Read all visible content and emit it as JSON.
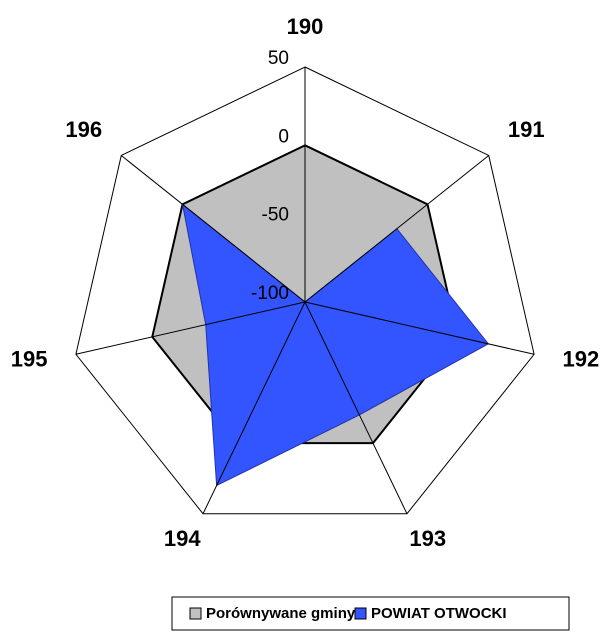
{
  "chart_data": {
    "type": "radar",
    "categories": [
      "190",
      "191",
      "192",
      "193",
      "194",
      "195",
      "196"
    ],
    "ylim": [
      -100,
      50
    ],
    "yticks": [
      -100,
      -50,
      0,
      50
    ],
    "series": [
      {
        "name": "Porównywane gminy",
        "color": "#c0c0c0",
        "values": [
          0,
          0,
          0,
          0,
          0,
          0,
          0
        ]
      },
      {
        "name": "POWIAT OTWOCKI",
        "color": "#3355ff",
        "values": [
          -100,
          -25,
          20,
          -20,
          30,
          -35,
          0
        ]
      }
    ]
  }
}
